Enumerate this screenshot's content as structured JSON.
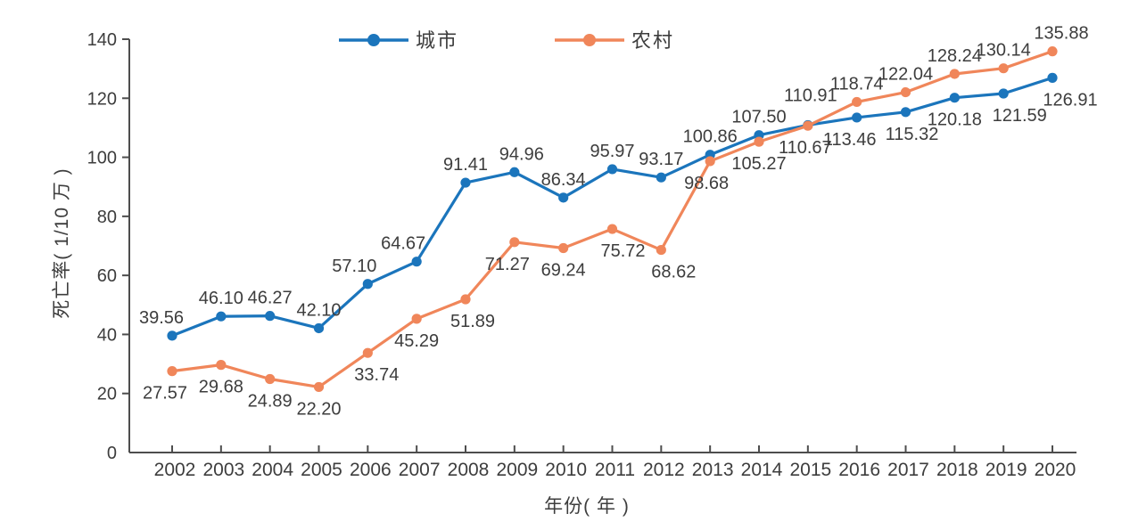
{
  "figure": {
    "background": "#ffffff",
    "axis_color": "#4d4d4d",
    "text_color": "#3d3d3d"
  },
  "chart_data": {
    "type": "line",
    "title": "",
    "xlabel": "年份( 年 )",
    "ylabel": "死亡率( 1/10 万 )",
    "x": [
      2002,
      2003,
      2004,
      2005,
      2006,
      2007,
      2008,
      2009,
      2010,
      2011,
      2012,
      2013,
      2014,
      2015,
      2016,
      2017,
      2018,
      2019,
      2020
    ],
    "series": [
      {
        "name": "城市",
        "color": "#1b75bc",
        "values": [
          39.56,
          46.1,
          46.27,
          42.1,
          57.1,
          64.67,
          91.41,
          94.96,
          86.34,
          95.97,
          93.17,
          100.86,
          107.5,
          110.91,
          113.46,
          115.32,
          120.18,
          121.59,
          126.91
        ]
      },
      {
        "name": "农村",
        "color": "#f0865a",
        "values": [
          27.57,
          29.68,
          24.89,
          22.2,
          33.74,
          45.29,
          51.89,
          71.27,
          69.24,
          75.72,
          68.62,
          98.68,
          105.27,
          110.67,
          118.74,
          122.04,
          128.24,
          130.14,
          135.88
        ]
      }
    ],
    "ylim": [
      0,
      140
    ],
    "yticks": [
      0,
      20,
      40,
      60,
      80,
      100,
      120,
      140
    ],
    "value_labels_shown": true,
    "value_label_decimals": 2,
    "grid": false,
    "legend_position": "top-center",
    "legend": [
      "城市",
      "农村"
    ]
  }
}
